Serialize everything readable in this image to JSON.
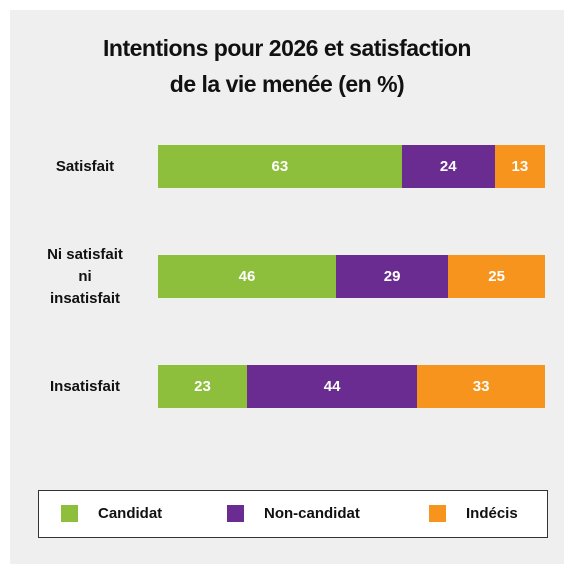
{
  "chart_data": {
    "type": "stacked-bar-horizontal",
    "title": "Intentions pour 2026 et satisfaction\nde la vie menée (en %)",
    "categories": [
      "Satisfait",
      "Ni satisfait\nni\ninsatisfait",
      "Insatisfait"
    ],
    "series": [
      {
        "name": "Candidat",
        "color": "#8dbf3c",
        "values": [
          63,
          46,
          23
        ]
      },
      {
        "name": "Non-candidat",
        "color": "#6a2c91",
        "values": [
          24,
          29,
          44
        ]
      },
      {
        "name": "Indécis",
        "color": "#f7941d",
        "values": [
          13,
          25,
          33
        ]
      }
    ],
    "xlim": [
      0,
      100
    ],
    "legend": "bottom"
  }
}
